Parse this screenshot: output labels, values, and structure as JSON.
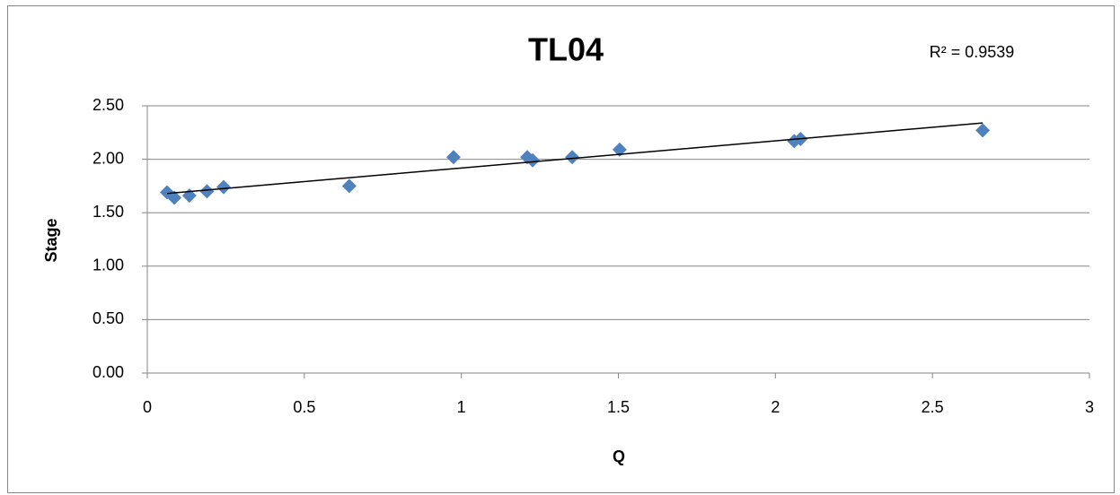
{
  "chart_data": {
    "type": "scatter",
    "title": "TL04",
    "x_label": "Q",
    "y_label": "Stage",
    "annotation": "R² = 0.9539",
    "series": [
      {
        "name": "Stage",
        "color": "#4f81bd",
        "x": [
          0.063,
          0.086,
          0.134,
          0.19,
          0.243,
          0.643,
          0.975,
          1.21,
          1.227,
          1.353,
          1.504,
          2.06,
          2.08,
          2.66
        ],
        "values": [
          1.69,
          1.64,
          1.66,
          1.7,
          1.74,
          1.75,
          2.02,
          2.02,
          1.99,
          2.02,
          2.09,
          2.17,
          2.19,
          2.27
        ]
      }
    ],
    "trendline": {
      "color": "#000000",
      "x": [
        0.063,
        2.66
      ],
      "values": [
        1.68,
        2.34
      ]
    },
    "xlim": [
      0,
      3
    ],
    "xticks": [
      0,
      0.5,
      1,
      1.5,
      2,
      2.5,
      3
    ],
    "ylim": [
      0,
      2.5
    ],
    "yticks": [
      {
        "value": 0,
        "label": "0.00"
      },
      {
        "value": 0.5,
        "label": "0.50"
      },
      {
        "value": 1,
        "label": "1.00"
      },
      {
        "value": 1.5,
        "label": "1.50"
      },
      {
        "value": 2,
        "label": "2.00"
      },
      {
        "value": 2.5,
        "label": "2.50"
      }
    ],
    "grid": true
  }
}
